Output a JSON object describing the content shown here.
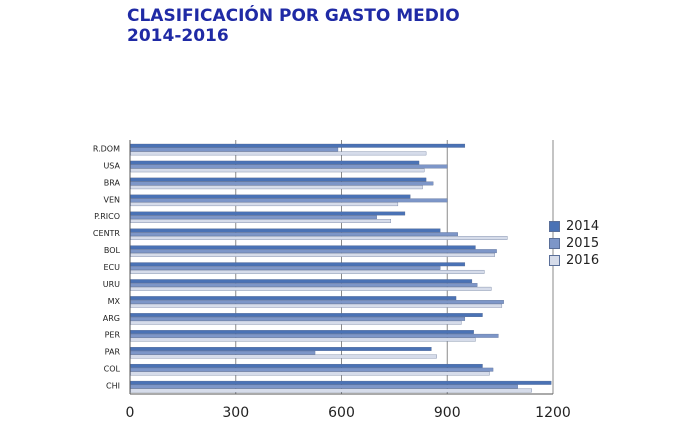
{
  "title_line1": "CLASIFICACIÓN POR GASTO MEDIO",
  "title_line2": "2014-2016",
  "chart_data": {
    "type": "bar",
    "orientation": "horizontal",
    "categories": [
      "R.DOM",
      "USA",
      "BRA",
      "VEN",
      "P.RICO",
      "CENTR",
      "BOL",
      "ECU",
      "URU",
      "MX",
      "ARG",
      "PER",
      "PAR",
      "COL",
      "CHI"
    ],
    "series": [
      {
        "name": "2014",
        "color": "#4a72b5",
        "values": [
          950,
          820,
          840,
          795,
          780,
          880,
          980,
          950,
          970,
          925,
          1000,
          975,
          855,
          1000,
          1195
        ]
      },
      {
        "name": "2015",
        "color": "#7d96c8",
        "values": [
          590,
          900,
          860,
          900,
          700,
          930,
          1040,
          880,
          985,
          1060,
          950,
          1045,
          525,
          1030,
          1100
        ]
      },
      {
        "name": "2016",
        "color": "#d6dcea",
        "values": [
          840,
          835,
          830,
          760,
          740,
          1070,
          1035,
          1005,
          1025,
          1055,
          940,
          980,
          870,
          1020,
          1140
        ]
      }
    ],
    "xticks": [
      "0",
      "300",
      "600",
      "900",
      "1200"
    ],
    "xlim": [
      0,
      1200
    ],
    "grid": true,
    "legend_position": "right"
  }
}
